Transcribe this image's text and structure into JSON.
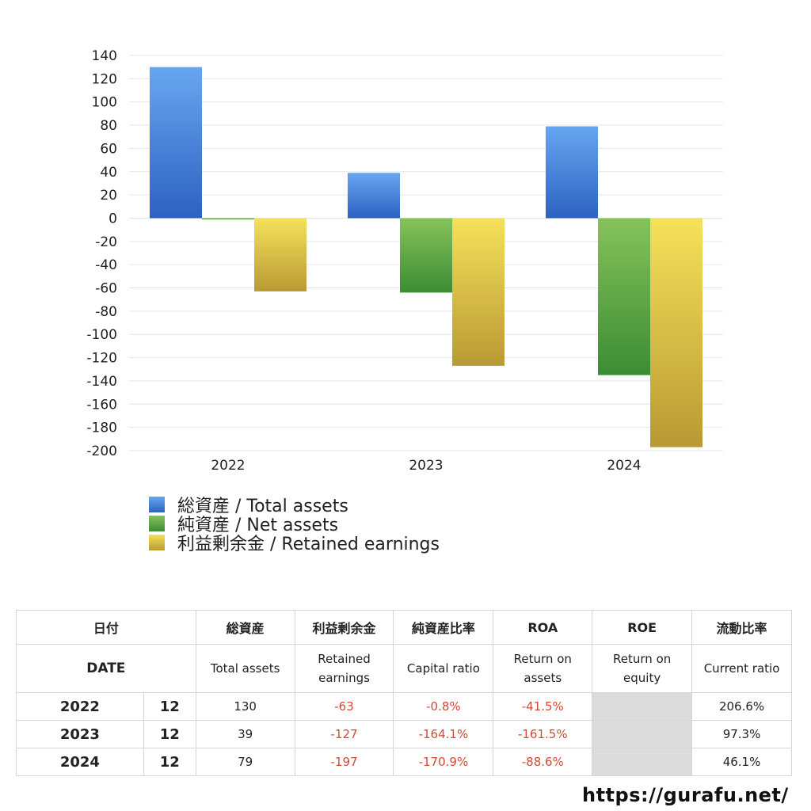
{
  "chart_data": {
    "type": "bar",
    "categories": [
      "2022",
      "2023",
      "2024"
    ],
    "series": [
      {
        "name": "総資産 / Total assets",
        "values": [
          130,
          39,
          79
        ],
        "color_top": "#68a6f0",
        "color_bottom": "#2d62c1"
      },
      {
        "name": "純資産 / Net assets",
        "values": [
          -1,
          -64,
          -135
        ],
        "color_top": "#86c25a",
        "color_bottom": "#3b8d34"
      },
      {
        "name": "利益剰余金 / Retained earnings",
        "values": [
          -63,
          -127,
          -197
        ],
        "color_top": "#f5e15a",
        "color_bottom": "#b89a34"
      }
    ],
    "ylim": [
      -200,
      140
    ],
    "yticks": [
      140,
      120,
      100,
      80,
      60,
      40,
      20,
      0,
      -20,
      -40,
      -60,
      -80,
      -100,
      -120,
      -140,
      -160,
      -180,
      -200
    ],
    "grid": true,
    "legend_position": "bottom-left"
  },
  "table": {
    "header_jp": [
      "日付",
      "総資産",
      "利益剰余金",
      "純資産比率",
      "ROA",
      "ROE",
      "流動比率"
    ],
    "header_en": {
      "date": "DATE",
      "total_assets": "Total assets",
      "retained_1": "Retained",
      "retained_2": "earnings",
      "capital_ratio": "Capital ratio",
      "roa_1": "Return on",
      "roa_2": "assets",
      "roe_1": "Return on",
      "roe_2": "equity",
      "current_ratio": "Current ratio"
    },
    "rows": [
      {
        "year": "2022",
        "month": "12",
        "total_assets": "130",
        "retained": "-63",
        "capital_ratio": "-0.8%",
        "roa": "-41.5%",
        "roe": "",
        "current_ratio": "206.6%"
      },
      {
        "year": "2023",
        "month": "12",
        "total_assets": "39",
        "retained": "-127",
        "capital_ratio": "-164.1%",
        "roa": "-161.5%",
        "roe": "",
        "current_ratio": "97.3%"
      },
      {
        "year": "2024",
        "month": "12",
        "total_assets": "79",
        "retained": "-197",
        "capital_ratio": "-170.9%",
        "roa": "-88.6%",
        "roe": "",
        "current_ratio": "46.1%"
      }
    ]
  },
  "source": "https://gurafu.net/"
}
